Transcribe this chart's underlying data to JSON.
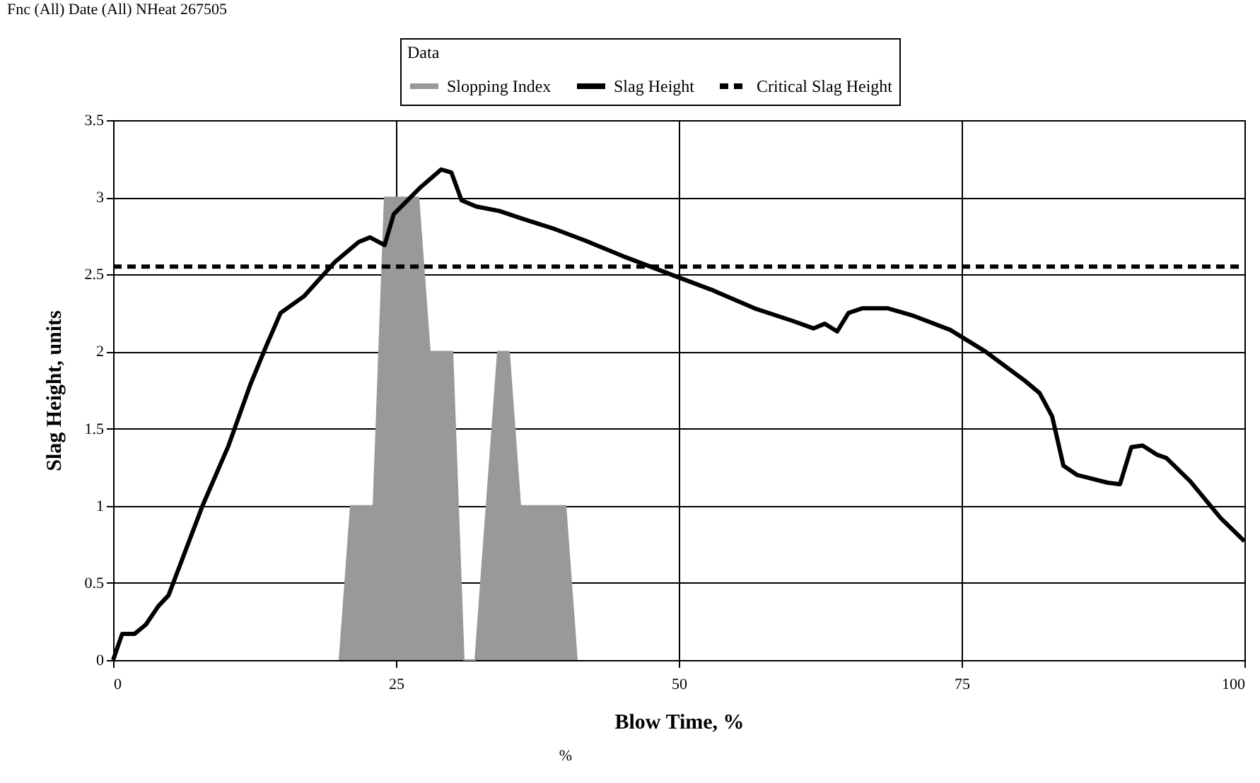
{
  "chart_data": {
    "type": "line",
    "xlabel": "Blow Time, %",
    "ylabel": "Slag Height, units",
    "legend_title": "Data",
    "annotations": [
      "Fnc (All) Date (All) NHeat 267505",
      "%"
    ],
    "xlim": [
      0,
      100
    ],
    "xticks": [
      0,
      25,
      50,
      75,
      100
    ],
    "ylim": [
      0,
      3.5
    ],
    "yticks": [
      0,
      0.5,
      1,
      1.5,
      2,
      2.5,
      3,
      3.5
    ],
    "grid": true,
    "legend": "top",
    "series": [
      {
        "name": "Slopping Index",
        "type": "area",
        "color": "#999999",
        "x": [
          20,
          21,
          22,
          23,
          24,
          25,
          26,
          27,
          28,
          29,
          30,
          31,
          32,
          33,
          34,
          35,
          36,
          37,
          38,
          39,
          40,
          41
        ],
        "values": [
          0,
          1,
          1,
          1,
          3,
          3,
          3,
          3,
          2,
          2,
          2,
          0,
          0,
          1,
          2,
          2,
          1,
          1,
          1,
          1,
          1,
          0
        ]
      },
      {
        "name": "Slag Height",
        "line_style": "solid",
        "color": "#000000",
        "x": [
          0,
          0.8,
          1.9,
          2.9,
          4,
          4.9,
          7.9,
          10.2,
          12.1,
          13.5,
          14.8,
          16.9,
          19.6,
          21.7,
          22.7,
          24,
          24.8,
          27.1,
          29,
          29.9,
          30.8,
          32.1,
          34.2,
          36.2,
          38.8,
          41.7,
          45,
          50,
          52.9,
          56.7,
          60,
          61.9,
          62.9,
          64,
          65,
          66.2,
          68.5,
          70.8,
          74,
          77.1,
          80.6,
          81.9,
          83,
          84,
          85.2,
          87.9,
          89,
          90,
          91,
          92.3,
          93.1,
          95.2,
          97.9,
          100
        ],
        "values": [
          0,
          0.17,
          0.17,
          0.23,
          0.35,
          0.42,
          1.0,
          1.39,
          1.78,
          2.03,
          2.25,
          2.36,
          2.58,
          2.71,
          2.74,
          2.69,
          2.89,
          3.06,
          3.18,
          3.16,
          2.98,
          2.94,
          2.91,
          2.86,
          2.8,
          2.72,
          2.62,
          2.48,
          2.4,
          2.28,
          2.2,
          2.15,
          2.18,
          2.13,
          2.25,
          2.28,
          2.28,
          2.23,
          2.14,
          2.0,
          1.81,
          1.73,
          1.58,
          1.26,
          1.2,
          1.15,
          1.14,
          1.38,
          1.39,
          1.33,
          1.31,
          1.16,
          0.92,
          0.77
        ]
      },
      {
        "name": "Critical Slag Height",
        "line_style": "dashed",
        "color": "#000000",
        "x": [
          0,
          100
        ],
        "values": [
          2.55,
          2.55
        ]
      }
    ]
  }
}
